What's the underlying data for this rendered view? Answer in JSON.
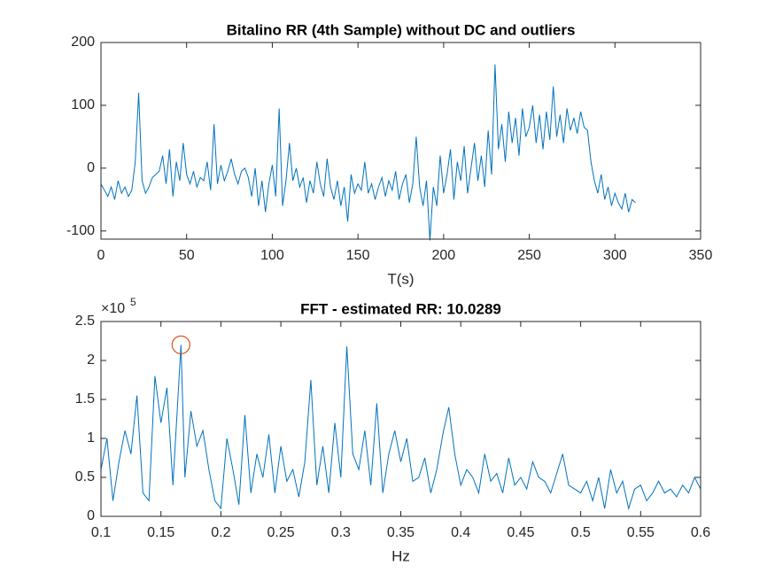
{
  "chart_data": [
    {
      "type": "line",
      "title": "Bitalino RR (4th Sample) without DC and outliers",
      "xlabel": "T(s)",
      "x": [
        0,
        2,
        4,
        6,
        8,
        10,
        12,
        14,
        16,
        18,
        20,
        22,
        24,
        26,
        28,
        30,
        32,
        34,
        36,
        38,
        40,
        42,
        44,
        46,
        48,
        50,
        52,
        54,
        56,
        58,
        60,
        62,
        64,
        66,
        68,
        70,
        72,
        74,
        76,
        78,
        80,
        82,
        84,
        86,
        88,
        90,
        92,
        94,
        96,
        98,
        100,
        102,
        104,
        106,
        108,
        110,
        112,
        114,
        116,
        118,
        120,
        122,
        124,
        126,
        128,
        130,
        132,
        134,
        136,
        138,
        140,
        142,
        144,
        146,
        148,
        150,
        152,
        154,
        156,
        158,
        160,
        162,
        164,
        166,
        168,
        170,
        172,
        174,
        176,
        178,
        180,
        182,
        184,
        186,
        188,
        190,
        192,
        194,
        196,
        198,
        200,
        202,
        204,
        206,
        208,
        210,
        212,
        214,
        216,
        218,
        220,
        222,
        224,
        226,
        228,
        230,
        232,
        234,
        236,
        238,
        240,
        242,
        244,
        246,
        248,
        250,
        252,
        254,
        256,
        258,
        260,
        262,
        264,
        266,
        268,
        270,
        272,
        274,
        276,
        278,
        280,
        282,
        284,
        286,
        288,
        290,
        292,
        294,
        296,
        298,
        300,
        302,
        304,
        306,
        308,
        310,
        312
      ],
      "series": [
        {
          "color": "#0072bd",
          "values": [
            -25,
            -35,
            -45,
            -30,
            -50,
            -20,
            -40,
            -30,
            -45,
            -35,
            10,
            120,
            -20,
            -40,
            -30,
            -15,
            -10,
            -5,
            20,
            -25,
            30,
            -45,
            10,
            -20,
            40,
            -10,
            -25,
            -5,
            -30,
            -15,
            -20,
            10,
            -35,
            70,
            -25,
            5,
            -20,
            -5,
            15,
            -10,
            -25,
            -5,
            0,
            -15,
            -45,
            0,
            -60,
            -20,
            -70,
            -25,
            5,
            -45,
            95,
            -60,
            -20,
            40,
            -20,
            0,
            -30,
            -15,
            -55,
            -20,
            -40,
            10,
            -25,
            -45,
            15,
            -30,
            -50,
            -20,
            -60,
            -30,
            -85,
            -10,
            -40,
            -25,
            -35,
            10,
            -40,
            -25,
            -50,
            -30,
            -15,
            -45,
            -20,
            -35,
            -5,
            -50,
            -25,
            -10,
            -55,
            -25,
            50,
            -30,
            -60,
            -20,
            -115,
            -30,
            -60,
            20,
            -40,
            -10,
            30,
            -50,
            10,
            -20,
            35,
            -40,
            0,
            40,
            -20,
            20,
            -30,
            60,
            -10,
            165,
            30,
            70,
            10,
            90,
            40,
            80,
            20,
            95,
            50,
            65,
            100,
            40,
            85,
            30,
            90,
            45,
            130,
            50,
            85,
            40,
            95,
            60,
            80,
            55,
            90,
            65,
            60,
            10,
            -20,
            -40,
            -10,
            -50,
            -30,
            -60,
            -40,
            -55,
            -65,
            -40,
            -70,
            -50,
            -55
          ]
        }
      ],
      "xlim": [
        0,
        350
      ],
      "ylim": [
        -113,
        200
      ],
      "xticks": [
        0,
        50,
        100,
        150,
        200,
        250,
        300,
        350
      ],
      "yticks": [
        -100,
        0,
        100,
        200
      ]
    },
    {
      "type": "line",
      "title": "FFT - estimated RR: 10.0289",
      "xlabel": "Hz",
      "ymultiplier": "×10",
      "ymultiplier_exponent": "5",
      "x": [
        0.1,
        0.105,
        0.11,
        0.115,
        0.12,
        0.125,
        0.13,
        0.135,
        0.14,
        0.145,
        0.15,
        0.155,
        0.16,
        0.1667,
        0.17,
        0.175,
        0.18,
        0.185,
        0.19,
        0.195,
        0.2,
        0.205,
        0.21,
        0.215,
        0.22,
        0.225,
        0.23,
        0.235,
        0.24,
        0.245,
        0.25,
        0.255,
        0.26,
        0.265,
        0.27,
        0.275,
        0.28,
        0.285,
        0.29,
        0.295,
        0.3,
        0.305,
        0.31,
        0.315,
        0.32,
        0.325,
        0.33,
        0.335,
        0.34,
        0.345,
        0.35,
        0.355,
        0.36,
        0.365,
        0.37,
        0.375,
        0.38,
        0.385,
        0.39,
        0.395,
        0.4,
        0.405,
        0.41,
        0.415,
        0.42,
        0.425,
        0.43,
        0.435,
        0.44,
        0.445,
        0.45,
        0.455,
        0.46,
        0.465,
        0.47,
        0.475,
        0.48,
        0.485,
        0.49,
        0.495,
        0.5,
        0.505,
        0.51,
        0.515,
        0.52,
        0.525,
        0.53,
        0.535,
        0.54,
        0.545,
        0.55,
        0.555,
        0.56,
        0.565,
        0.57,
        0.575,
        0.58,
        0.585,
        0.59,
        0.595,
        0.6
      ],
      "series": [
        {
          "color": "#0072bd",
          "values": [
            0.6,
            1.0,
            0.2,
            0.7,
            1.1,
            0.8,
            1.55,
            0.3,
            0.2,
            1.8,
            1.2,
            1.65,
            0.4,
            2.2,
            0.5,
            1.35,
            0.9,
            1.1,
            0.6,
            0.2,
            0.1,
            1.0,
            0.6,
            0.15,
            1.3,
            0.3,
            0.8,
            0.5,
            1.05,
            0.3,
            0.9,
            0.45,
            0.6,
            0.25,
            0.7,
            1.75,
            0.4,
            0.9,
            0.3,
            1.2,
            0.5,
            2.18,
            0.8,
            0.6,
            1.1,
            0.4,
            1.45,
            0.3,
            0.8,
            1.1,
            0.7,
            1.0,
            0.45,
            0.5,
            0.75,
            0.3,
            0.6,
            1.05,
            1.4,
            0.8,
            0.4,
            0.6,
            0.5,
            0.3,
            0.8,
            0.45,
            0.55,
            0.3,
            0.75,
            0.4,
            0.5,
            0.35,
            0.7,
            0.5,
            0.45,
            0.3,
            0.55,
            0.8,
            0.4,
            0.35,
            0.3,
            0.45,
            0.2,
            0.5,
            0.1,
            0.6,
            0.3,
            0.45,
            0.1,
            0.35,
            0.4,
            0.2,
            0.3,
            0.45,
            0.3,
            0.35,
            0.25,
            0.4,
            0.3,
            0.5,
            0.35
          ]
        }
      ],
      "highlight": {
        "x": 0.1667,
        "y": 2.2,
        "color": "#d95319"
      },
      "xlim": [
        0.1,
        0.6
      ],
      "ylim": [
        0,
        2.5
      ],
      "xticks": [
        0.1,
        0.15,
        0.2,
        0.25,
        0.3,
        0.35,
        0.4,
        0.45,
        0.5,
        0.55,
        0.6
      ],
      "yticks": [
        0,
        0.5,
        1,
        1.5,
        2,
        2.5
      ]
    }
  ]
}
